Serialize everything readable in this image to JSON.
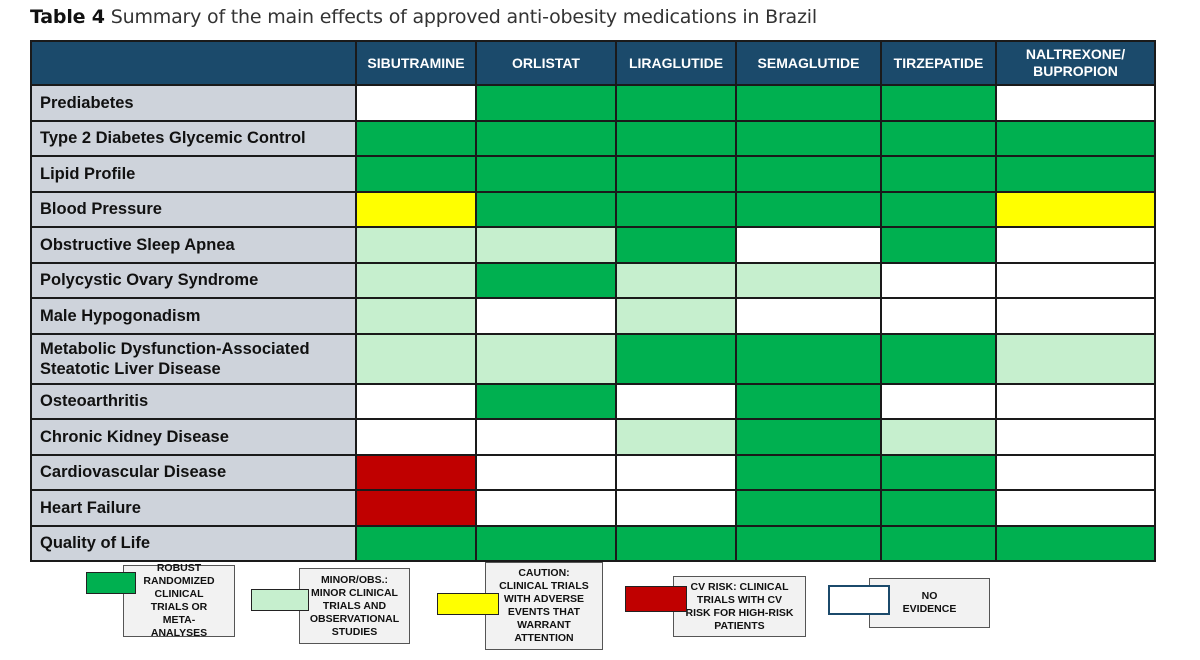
{
  "caption": {
    "label": "Table 4",
    "text": "Summary of the main effects of approved anti-obesity medications in Brazil"
  },
  "colors": {
    "robust": "#00b050",
    "minor": "#c6efce",
    "caution": "#ffff00",
    "cvrisk": "#c00000",
    "none": "#ffffff",
    "header": "#1b4a6b",
    "rowlabel": "#ced3db"
  },
  "columns": [
    "SIBUTRAMINE",
    "ORLISTAT",
    "LIRAGLUTIDE",
    "SEMAGLUTIDE",
    "TIRZEPATIDE",
    "NALTREXONE/\nBUPROPION"
  ],
  "rows": [
    {
      "label": "Prediabetes",
      "cells": [
        "none",
        "robust",
        "robust",
        "robust",
        "robust",
        "none"
      ]
    },
    {
      "label": "Type 2 Diabetes Glycemic Control",
      "cells": [
        "robust",
        "robust",
        "robust",
        "robust",
        "robust",
        "robust"
      ]
    },
    {
      "label": "Lipid Profile",
      "cells": [
        "robust",
        "robust",
        "robust",
        "robust",
        "robust",
        "robust"
      ]
    },
    {
      "label": "Blood Pressure",
      "cells": [
        "caution",
        "robust",
        "robust",
        "robust",
        "robust",
        "caution"
      ]
    },
    {
      "label": "Obstructive Sleep Apnea",
      "cells": [
        "minor",
        "minor",
        "robust",
        "none",
        "robust",
        "none"
      ]
    },
    {
      "label": "Polycystic Ovary Syndrome",
      "cells": [
        "minor",
        "robust",
        "minor",
        "minor",
        "none",
        "none"
      ]
    },
    {
      "label": "Male Hypogonadism",
      "cells": [
        "minor",
        "none",
        "minor",
        "none",
        "none",
        "none"
      ]
    },
    {
      "label": "Metabolic Dysfunction-Associated\nSteatotic Liver Disease",
      "cells": [
        "minor",
        "minor",
        "robust",
        "robust",
        "robust",
        "minor"
      ],
      "tall": true
    },
    {
      "label": "Osteoarthritis",
      "cells": [
        "none",
        "robust",
        "none",
        "robust",
        "none",
        "none"
      ]
    },
    {
      "label": "Chronic Kidney Disease",
      "cells": [
        "none",
        "none",
        "minor",
        "robust",
        "minor",
        "none"
      ]
    },
    {
      "label": "Cardiovascular Disease",
      "cells": [
        "cvrisk",
        "none",
        "none",
        "robust",
        "robust",
        "none"
      ]
    },
    {
      "label": "Heart Failure",
      "cells": [
        "cvrisk",
        "none",
        "none",
        "robust",
        "robust",
        "none"
      ]
    },
    {
      "label": "Quality of Life",
      "cells": [
        "robust",
        "robust",
        "robust",
        "robust",
        "robust",
        "robust"
      ]
    }
  ],
  "legend": [
    {
      "key": "robust",
      "text": "ROBUST\nRANDOMIZED\nCLINICAL\nTRIALS OR\nMETA-\nANALYSES"
    },
    {
      "key": "minor",
      "text": "MINOR/OBS.:\nMINOR CLINICAL\nTRIALS AND\nOBSERVATIONAL\nSTUDIES"
    },
    {
      "key": "caution",
      "text": "CAUTION:\nCLINICAL TRIALS\nWITH ADVERSE\nEVENTS THAT\nWARRANT\nATTENTION"
    },
    {
      "key": "cvrisk",
      "text": "CV RISK: CLINICAL\nTRIALS WITH CV\nRISK FOR HIGH-RISK\nPATIENTS"
    },
    {
      "key": "none",
      "text": "NO\nEVIDENCE"
    }
  ]
}
